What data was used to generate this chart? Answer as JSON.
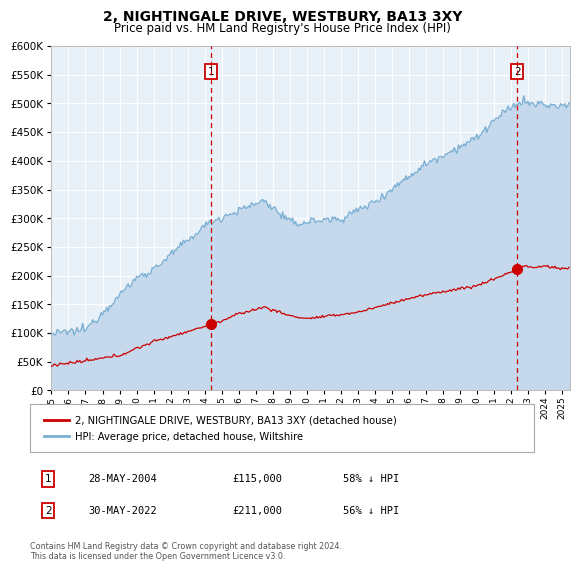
{
  "title": "2, NIGHTINGALE DRIVE, WESTBURY, BA13 3XY",
  "subtitle": "Price paid vs. HM Land Registry's House Price Index (HPI)",
  "ylim": [
    0,
    600000
  ],
  "yticks": [
    0,
    50000,
    100000,
    150000,
    200000,
    250000,
    300000,
    350000,
    400000,
    450000,
    500000,
    550000,
    600000
  ],
  "xlim_start": 1995.0,
  "xlim_end": 2025.5,
  "plot_bg_color": "#e8f0f8",
  "grid_color": "#ffffff",
  "legend_label_hpi": "HPI: Average price, detached house, Wiltshire",
  "legend_label_property": "2, NIGHTINGALE DRIVE, WESTBURY, BA13 3XY (detached house)",
  "hpi_color": "#7ab0d4",
  "hpi_fill_color": "#c5d8ec",
  "property_color": "#cc0000",
  "sale1_date": 2004.38,
  "sale1_price": 115000,
  "sale2_date": 2022.38,
  "sale2_price": 211000,
  "annotation1_date": "28-MAY-2004",
  "annotation1_price": "£115,000",
  "annotation1_pct": "58% ↓ HPI",
  "annotation2_date": "30-MAY-2022",
  "annotation2_price": "£211,000",
  "annotation2_pct": "56% ↓ HPI",
  "footer": "Contains HM Land Registry data © Crown copyright and database right 2024.\nThis data is licensed under the Open Government Licence v3.0."
}
